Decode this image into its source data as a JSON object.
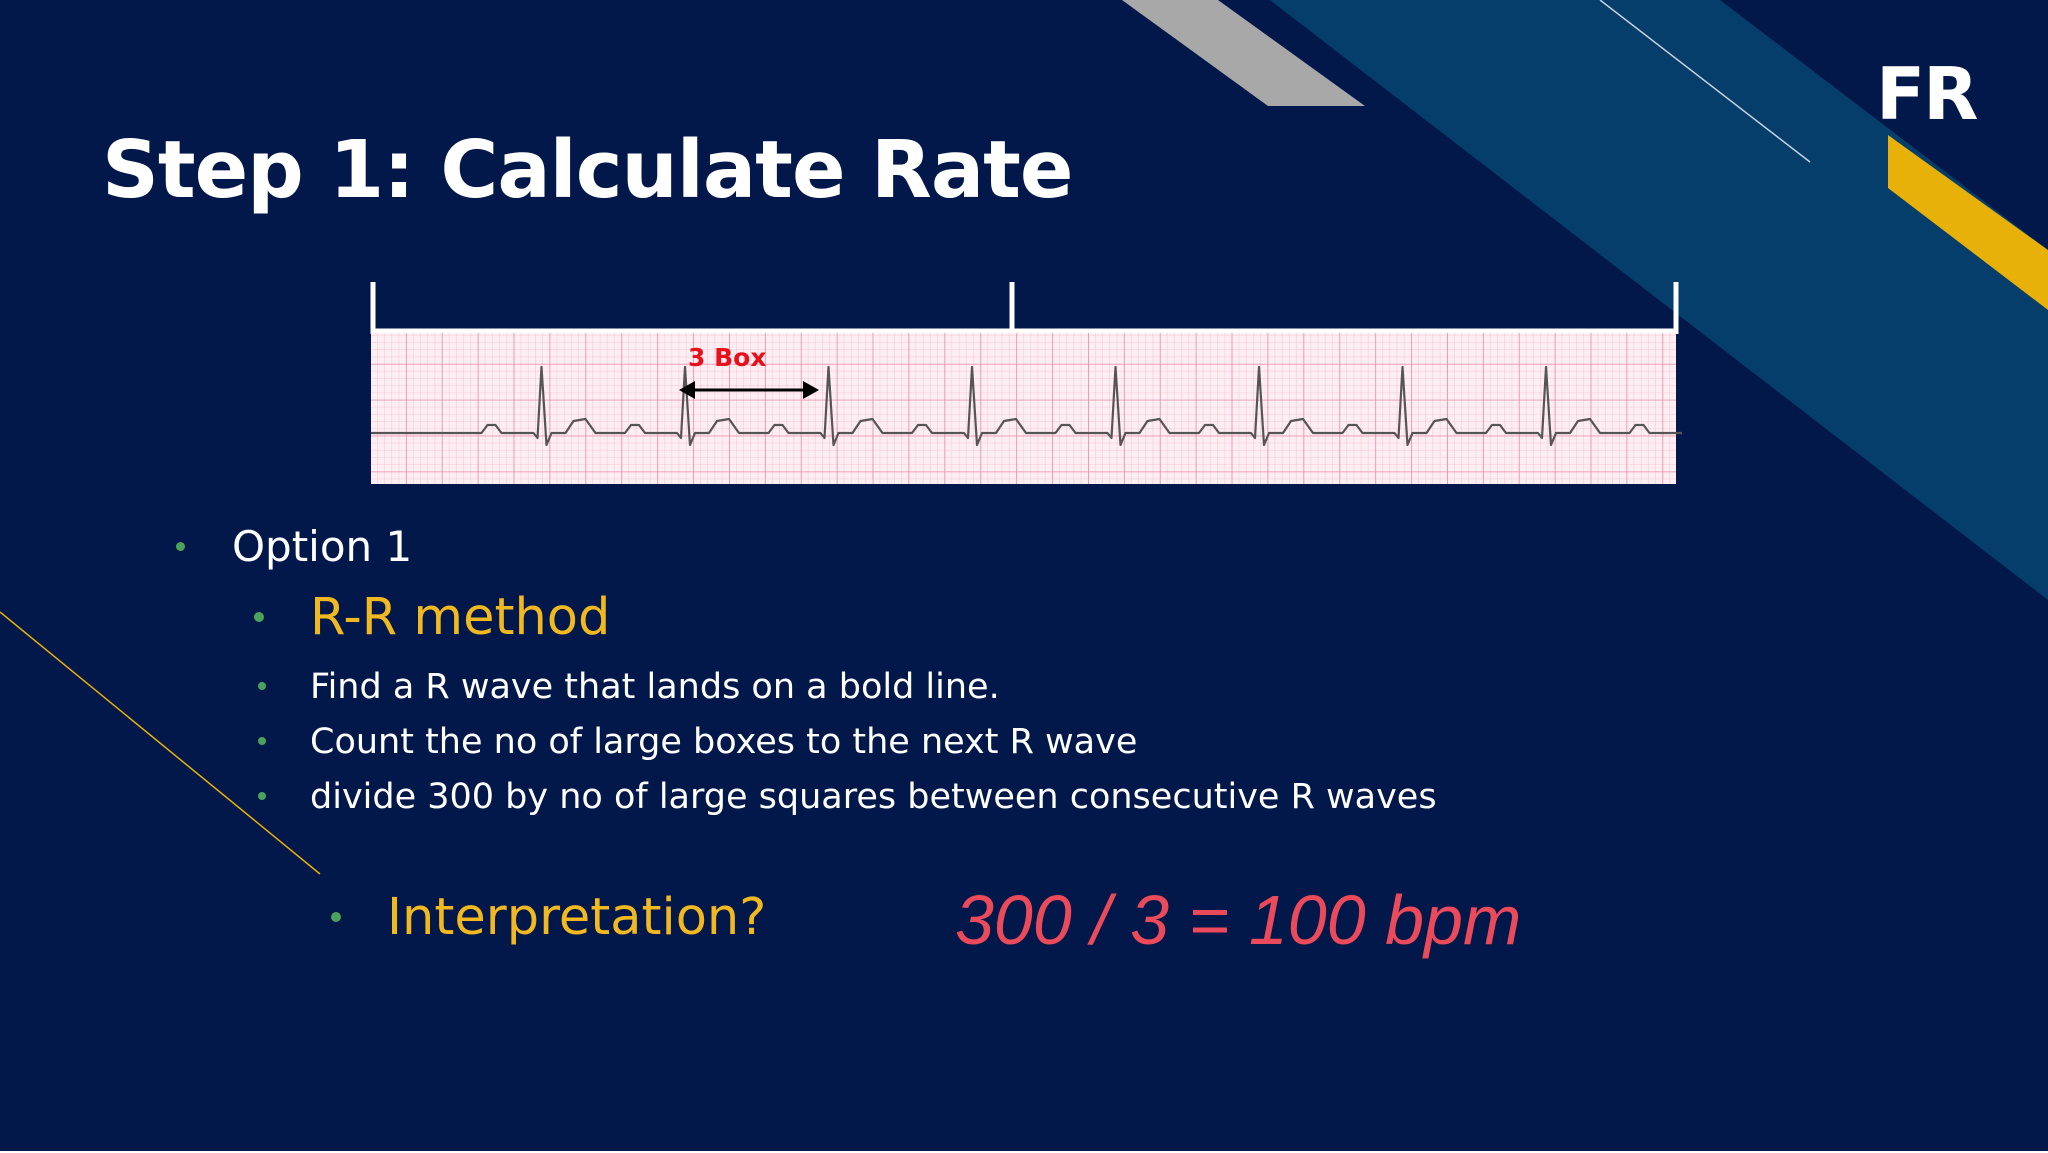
{
  "slide": {
    "title": "Step 1: Calculate Rate",
    "logo_text": "FR",
    "colors": {
      "background": "#03184a",
      "accent_teal": "#053e6a",
      "accent_gold": "#e8b10a",
      "accent_gray": "#a8a8a8",
      "bullet": "#4aa35a",
      "heading_gold": "#f1b820",
      "answer_red": "#ea4a5a",
      "ecg_label_red": "#e8111b"
    }
  },
  "ecg_strip": {
    "label": "3 Box"
  },
  "bullets": {
    "option": "Option 1",
    "method": "R-R method",
    "steps": [
      "Find a R wave that lands on a bold line.",
      "Count the no of large boxes to the next R wave",
      "divide 300 by no of large squares between consecutive R waves"
    ],
    "interpretation": "Interpretation?"
  },
  "answer": "300 / 3 = 100 bpm"
}
